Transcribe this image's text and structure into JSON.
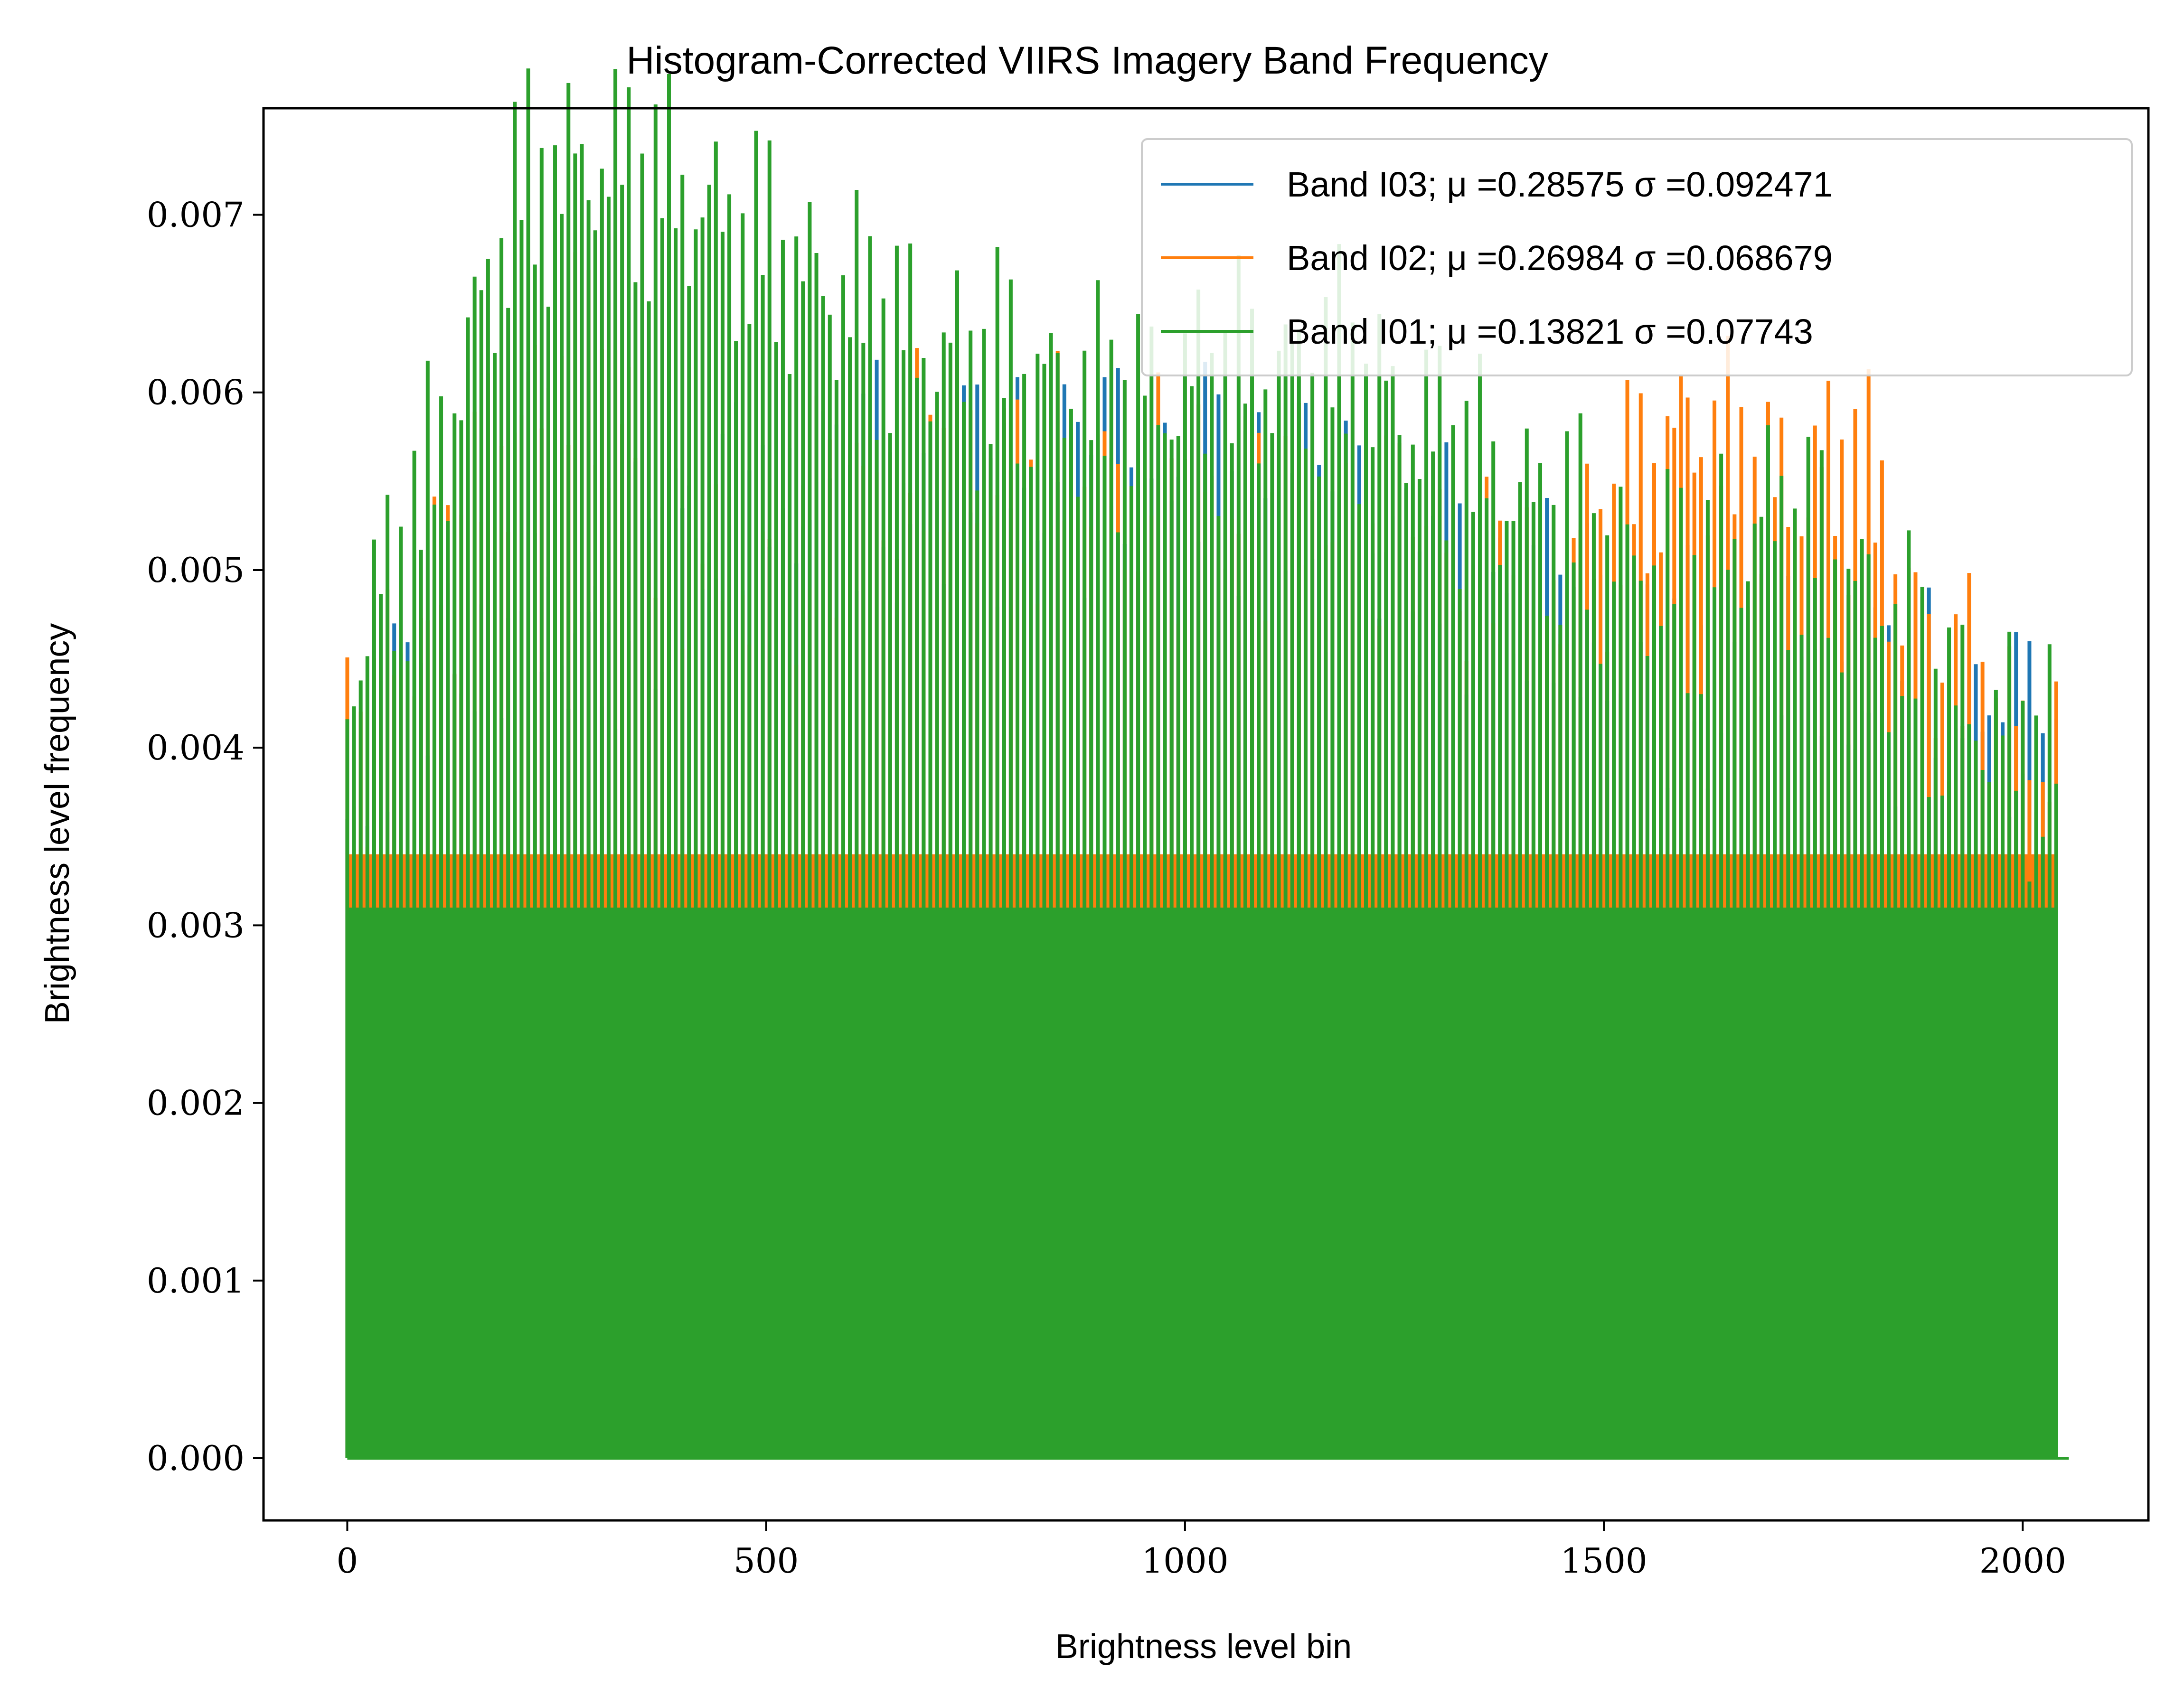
{
  "chart_data": {
    "type": "bar",
    "title": "Histogram-Corrected VIIRS Imagery Band Frequency",
    "xlabel": "Brightness level bin",
    "ylabel": "Brightness level frequency",
    "xlim": [
      -100,
      2150
    ],
    "ylim": [
      -0.00035,
      0.0076
    ],
    "xticks": [
      0,
      500,
      1000,
      1500,
      2000
    ],
    "xtick_labels": [
      "0",
      "500",
      "1000",
      "1500",
      "2000"
    ],
    "yticks": [
      0.0,
      0.001,
      0.002,
      0.003,
      0.004,
      0.005,
      0.006,
      0.007
    ],
    "ytick_labels": [
      "0.000",
      "0.001",
      "0.002",
      "0.003",
      "0.004",
      "0.005",
      "0.006",
      "0.007"
    ],
    "grid": false,
    "legend_position": "upper-right",
    "series": [
      {
        "name": "Band I03; μ =0.28575 σ =0.092471",
        "color": "#1f77b4",
        "x": [
          0,
          100,
          200,
          300,
          400,
          500,
          600,
          700,
          800,
          900,
          1000,
          1100,
          1200,
          1300,
          1400,
          1500,
          1600,
          1700,
          1800,
          1900,
          2000,
          2040
        ],
        "y": [
          0.0033,
          0.0045,
          0.0045,
          0.0046,
          0.0052,
          0.0054,
          0.0055,
          0.0054,
          0.0055,
          0.0055,
          0.0055,
          0.0054,
          0.0052,
          0.005,
          0.0048,
          0.0046,
          0.0044,
          0.0043,
          0.0043,
          0.0042,
          0.004,
          0.0039
        ]
      },
      {
        "name": "Band I02; μ =0.26984 σ =0.068679",
        "color": "#ff7f0e",
        "x": [
          0,
          100,
          200,
          300,
          400,
          500,
          600,
          700,
          800,
          900,
          1000,
          1100,
          1200,
          1300,
          1400,
          1500,
          1600,
          1700,
          1800,
          1900,
          2000,
          2040
        ],
        "y": [
          0.0039,
          0.0048,
          0.0058,
          0.0062,
          0.0048,
          0.005,
          0.0054,
          0.0056,
          0.0055,
          0.0055,
          0.0054,
          0.0053,
          0.0052,
          0.005,
          0.0048,
          0.0052,
          0.0058,
          0.0054,
          0.0056,
          0.0044,
          0.004,
          0.0039
        ]
      },
      {
        "name": "Band I01; μ =0.13821 σ =0.07743",
        "color": "#2ca02c",
        "x": [
          0,
          100,
          200,
          300,
          400,
          500,
          600,
          700,
          800,
          900,
          1000,
          1100,
          1200,
          1300,
          1400,
          1500,
          1600,
          1700,
          1800,
          1900,
          2000,
          2040
        ],
        "y": [
          0.0044,
          0.0055,
          0.0071,
          0.0073,
          0.0071,
          0.0068,
          0.0065,
          0.0062,
          0.0061,
          0.0059,
          0.006,
          0.0061,
          0.0061,
          0.0057,
          0.0054,
          0.0051,
          0.0049,
          0.0053,
          0.0049,
          0.0043,
          0.004,
          0.0039
        ]
      }
    ]
  }
}
